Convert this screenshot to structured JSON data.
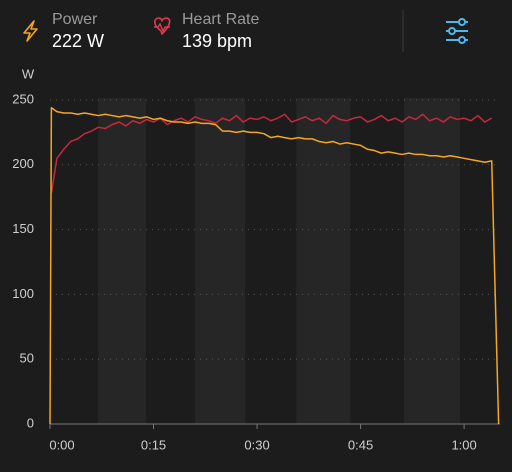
{
  "header": {
    "power_value": "222 W",
    "heart_rate_value": "139 bpm"
  },
  "chart_data": {
    "type": "line",
    "y_label": "W",
    "x": [
      0,
      0.2,
      1,
      2,
      3,
      4,
      5,
      6,
      7,
      8,
      9,
      10,
      11,
      12,
      13,
      14,
      15,
      16,
      17,
      18,
      19,
      20,
      21,
      22,
      23,
      24,
      25,
      26,
      27,
      28,
      29,
      30,
      31,
      32,
      33,
      34,
      35,
      36,
      37,
      38,
      39,
      40,
      41,
      42,
      43,
      44,
      45,
      46,
      47,
      48,
      49,
      50,
      51,
      52,
      53,
      54,
      55,
      56,
      57,
      58,
      59,
      60,
      61,
      62,
      63,
      64,
      65
    ],
    "series": [
      {
        "name": "Heart Rate",
        "color": "#c8283c",
        "values": [
          null,
          178,
          205,
          212,
          218,
          220,
          224,
          226,
          229,
          228,
          231,
          233,
          230,
          234,
          232,
          235,
          233,
          236,
          231,
          234,
          236,
          233,
          237,
          235,
          234,
          232,
          236,
          234,
          238,
          233,
          236,
          235,
          237,
          234,
          236,
          239,
          233,
          235,
          237,
          234,
          236,
          232,
          238,
          235,
          234,
          236,
          237,
          233,
          235,
          238,
          234,
          236,
          233,
          237,
          235,
          239,
          234,
          236,
          233,
          237,
          235,
          236,
          234,
          238,
          233,
          236,
          null
        ]
      },
      {
        "name": "Power",
        "color": "#f5a623",
        "values": [
          0,
          244,
          241,
          240,
          240,
          239,
          240,
          239,
          238,
          239,
          238,
          237,
          238,
          237,
          236,
          237,
          235,
          236,
          234,
          233,
          233,
          232,
          233,
          232,
          232,
          231,
          226,
          226,
          225,
          226,
          225,
          225,
          224,
          221,
          222,
          221,
          220,
          221,
          220,
          220,
          218,
          217,
          218,
          216,
          217,
          216,
          215,
          212,
          211,
          209,
          210,
          209,
          208,
          209,
          208,
          208,
          207,
          207,
          206,
          207,
          206,
          205,
          204,
          203,
          202,
          203,
          0
        ]
      }
    ],
    "bands": [
      [
        7.0,
        13.9
      ],
      [
        21.0,
        28.3
      ],
      [
        35.7,
        43.5
      ],
      [
        51.3,
        59.4
      ]
    ],
    "xlim": [
      0,
      65.2
    ],
    "xticks": [
      {
        "value": 0,
        "label": "0:00"
      },
      {
        "value": 15,
        "label": "0:15"
      },
      {
        "value": 30,
        "label": "0:30"
      },
      {
        "value": 45,
        "label": "0:45"
      },
      {
        "value": 60,
        "label": "1:00"
      }
    ],
    "ylim": [
      0,
      250
    ],
    "yticks": [
      0,
      50,
      100,
      150,
      200,
      250
    ],
    "grid": true
  }
}
